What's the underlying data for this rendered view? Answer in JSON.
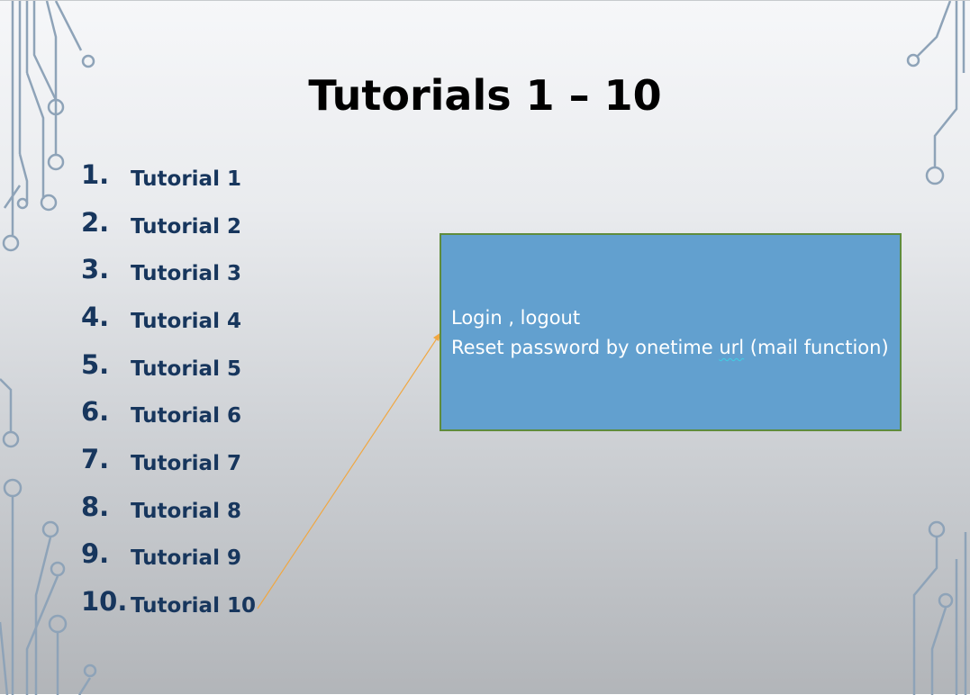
{
  "slide": {
    "title": "Tutorials 1 – 10",
    "items": [
      {
        "number": "1.",
        "label": "Tutorial 1"
      },
      {
        "number": "2.",
        "label": "Tutorial 2"
      },
      {
        "number": "3.",
        "label": "Tutorial 3"
      },
      {
        "number": "4.",
        "label": "Tutorial 4"
      },
      {
        "number": "5.",
        "label": "Tutorial 5"
      },
      {
        "number": "6.",
        "label": "Tutorial 6"
      },
      {
        "number": "7.",
        "label": "Tutorial 7"
      },
      {
        "number": "8.",
        "label": "Tutorial 8"
      },
      {
        "number": "9.",
        "label": "Tutorial 9"
      },
      {
        "number": "10.",
        "label": "Tutorial 10"
      }
    ],
    "callout": {
      "line1": "Login , logout",
      "line2_before": "Reset password by onetime ",
      "line2_misspelled": "url",
      "line2_after": " (mail function)"
    }
  },
  "colors": {
    "title": "#000000",
    "list_text": "#17365d",
    "callout_fill": "#62a0cf",
    "callout_border": "#5f8c3c",
    "callout_text": "#ffffff",
    "connector_arrow": "#f0a741",
    "circuit_lines": "#8ea3b8"
  },
  "icons": {
    "decoration": "circuit-board-lines"
  }
}
